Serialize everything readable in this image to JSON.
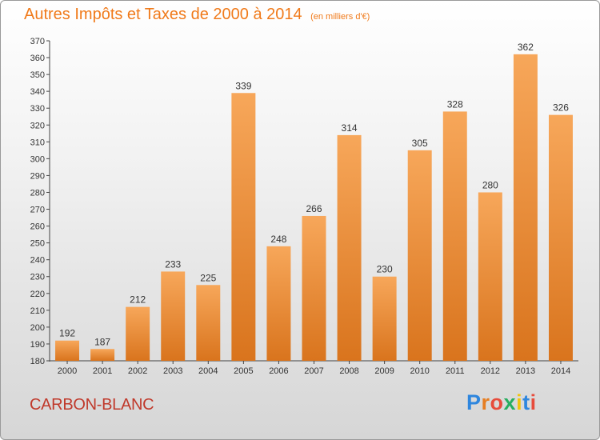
{
  "header": {
    "title": "Autres Impôts et Taxes de 2000 à 2014",
    "subtitle": "(en milliers d'€)"
  },
  "footer": {
    "place": "CARBON-BLANC",
    "logo_letters": [
      "P",
      "r",
      "o",
      "x",
      "i",
      "t",
      "i"
    ],
    "logo_colors": [
      "#2e86de",
      "#e67e22",
      "#e74c3c",
      "#27ae60",
      "#f1c40f",
      "#2e86de",
      "#e74c3c"
    ]
  },
  "colors": {
    "bar_light": "#f7a75a",
    "bar_dark": "#d9741d",
    "title": "#f07a1a",
    "place": "#c0392b"
  },
  "chart_data": {
    "type": "bar",
    "title": "Autres Impôts et Taxes de 2000 à 2014",
    "subtitle": "(en milliers d'€)",
    "categories": [
      "2000",
      "2001",
      "2002",
      "2003",
      "2004",
      "2005",
      "2006",
      "2007",
      "2008",
      "2009",
      "2010",
      "2011",
      "2012",
      "2013",
      "2014"
    ],
    "values": [
      192,
      187,
      212,
      233,
      225,
      339,
      248,
      266,
      314,
      230,
      305,
      328,
      280,
      362,
      326
    ],
    "ylim": [
      180,
      370
    ],
    "ytick_step": 10,
    "grid": false,
    "legend": "none"
  }
}
